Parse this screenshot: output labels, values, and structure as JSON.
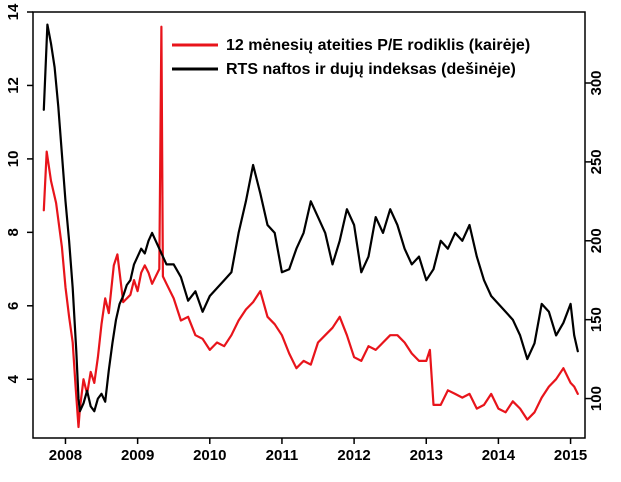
{
  "chart_data": {
    "type": "line",
    "title": "",
    "xlabel": "",
    "ylabel_left": "",
    "ylabel_right": "",
    "xlim": [
      2007.55,
      2015.2
    ],
    "ylim_left": [
      2.4,
      14
    ],
    "ylim_right": [
      75,
      345
    ],
    "x_ticks": [
      {
        "value": 2008,
        "label": "2008"
      },
      {
        "value": 2009,
        "label": "2009"
      },
      {
        "value": 2010,
        "label": "2010"
      },
      {
        "value": 2011,
        "label": "2011"
      },
      {
        "value": 2012,
        "label": "2012"
      },
      {
        "value": 2013,
        "label": "2013"
      },
      {
        "value": 2014,
        "label": "2014"
      },
      {
        "value": 2015,
        "label": "2015"
      }
    ],
    "y_left_ticks": [
      {
        "value": 4,
        "label": "4"
      },
      {
        "value": 6,
        "label": "6"
      },
      {
        "value": 8,
        "label": "8"
      },
      {
        "value": 10,
        "label": "10"
      },
      {
        "value": 12,
        "label": "12"
      },
      {
        "value": 14,
        "label": "14"
      }
    ],
    "y_right_ticks": [
      {
        "value": 100,
        "label": "100"
      },
      {
        "value": 150,
        "label": "150"
      },
      {
        "value": 200,
        "label": "200"
      },
      {
        "value": 250,
        "label": "250"
      },
      {
        "value": 300,
        "label": "300"
      }
    ],
    "grid": false,
    "legend_position": "top-right",
    "series": [
      {
        "name": "12 mėnesių ateities P/E rodiklis (kairėje)",
        "axis": "left",
        "color": "#e8141b",
        "x": [
          2007.7,
          2007.74,
          2007.8,
          2007.87,
          2007.95,
          2008.0,
          2008.05,
          2008.1,
          2008.14,
          2008.18,
          2008.2,
          2008.25,
          2008.3,
          2008.35,
          2008.4,
          2008.45,
          2008.5,
          2008.55,
          2008.6,
          2008.67,
          2008.72,
          2008.8,
          2008.9,
          2008.95,
          2009.0,
          2009.05,
          2009.1,
          2009.15,
          2009.2,
          2009.3,
          2009.33,
          2009.35,
          2009.4,
          2009.5,
          2009.6,
          2009.7,
          2009.8,
          2009.9,
          2010.0,
          2010.1,
          2010.2,
          2010.3,
          2010.4,
          2010.5,
          2010.6,
          2010.7,
          2010.8,
          2010.9,
          2011.0,
          2011.1,
          2011.2,
          2011.3,
          2011.4,
          2011.5,
          2011.6,
          2011.7,
          2011.8,
          2011.9,
          2012.0,
          2012.1,
          2012.2,
          2012.3,
          2012.4,
          2012.5,
          2012.6,
          2012.7,
          2012.8,
          2012.9,
          2013.0,
          2013.05,
          2013.1,
          2013.2,
          2013.3,
          2013.4,
          2013.5,
          2013.6,
          2013.7,
          2013.8,
          2013.9,
          2014.0,
          2014.1,
          2014.2,
          2014.3,
          2014.4,
          2014.5,
          2014.6,
          2014.7,
          2014.8,
          2014.9,
          2015.0,
          2015.05,
          2015.1
        ],
        "values": [
          8.6,
          10.2,
          9.4,
          8.8,
          7.6,
          6.5,
          5.7,
          5.0,
          3.8,
          2.7,
          3.2,
          4.0,
          3.6,
          4.2,
          3.9,
          4.6,
          5.5,
          6.2,
          5.8,
          7.1,
          7.4,
          6.1,
          6.3,
          6.7,
          6.4,
          6.9,
          7.1,
          6.9,
          6.6,
          7.0,
          13.6,
          6.8,
          6.6,
          6.2,
          5.6,
          5.7,
          5.2,
          5.1,
          4.8,
          5.0,
          4.9,
          5.2,
          5.6,
          5.9,
          6.1,
          6.4,
          5.7,
          5.5,
          5.2,
          4.7,
          4.3,
          4.5,
          4.4,
          5.0,
          5.2,
          5.4,
          5.7,
          5.2,
          4.6,
          4.5,
          4.9,
          4.8,
          5.0,
          5.2,
          5.2,
          5.0,
          4.7,
          4.5,
          4.5,
          4.8,
          3.3,
          3.3,
          3.7,
          3.6,
          3.5,
          3.6,
          3.2,
          3.3,
          3.6,
          3.2,
          3.1,
          3.4,
          3.2,
          2.9,
          3.1,
          3.5,
          3.8,
          4.0,
          4.3,
          3.9,
          3.8,
          3.6
        ]
      },
      {
        "name": "RTS naftos ir dujų indeksas (dešinėje)",
        "axis": "right",
        "color": "#000000",
        "x": [
          2007.7,
          2007.75,
          2007.8,
          2007.85,
          2007.9,
          2007.95,
          2008.0,
          2008.05,
          2008.1,
          2008.15,
          2008.18,
          2008.2,
          2008.25,
          2008.3,
          2008.35,
          2008.4,
          2008.45,
          2008.5,
          2008.55,
          2008.6,
          2008.65,
          2008.7,
          2008.75,
          2008.8,
          2008.85,
          2008.9,
          2008.95,
          2009.0,
          2009.05,
          2009.1,
          2009.15,
          2009.2,
          2009.3,
          2009.4,
          2009.5,
          2009.6,
          2009.7,
          2009.8,
          2009.9,
          2010.0,
          2010.1,
          2010.2,
          2010.3,
          2010.4,
          2010.5,
          2010.6,
          2010.7,
          2010.8,
          2010.9,
          2011.0,
          2011.1,
          2011.2,
          2011.3,
          2011.4,
          2011.5,
          2011.6,
          2011.7,
          2011.8,
          2011.9,
          2012.0,
          2012.1,
          2012.2,
          2012.3,
          2012.4,
          2012.5,
          2012.6,
          2012.7,
          2012.8,
          2012.9,
          2013.0,
          2013.1,
          2013.2,
          2013.3,
          2013.4,
          2013.5,
          2013.6,
          2013.7,
          2013.8,
          2013.9,
          2014.0,
          2014.1,
          2014.2,
          2014.3,
          2014.4,
          2014.5,
          2014.6,
          2014.7,
          2014.8,
          2014.9,
          2015.0,
          2015.05,
          2015.1
        ],
        "values": [
          283,
          337,
          325,
          310,
          285,
          255,
          225,
          200,
          170,
          130,
          100,
          92,
          97,
          105,
          95,
          92,
          100,
          103,
          98,
          118,
          135,
          150,
          160,
          165,
          172,
          175,
          185,
          190,
          195,
          192,
          200,
          205,
          195,
          185,
          185,
          177,
          162,
          168,
          155,
          165,
          170,
          175,
          180,
          205,
          225,
          248,
          230,
          210,
          205,
          180,
          182,
          195,
          205,
          225,
          215,
          205,
          185,
          200,
          220,
          210,
          180,
          190,
          215,
          205,
          220,
          210,
          195,
          185,
          190,
          175,
          182,
          200,
          195,
          205,
          200,
          210,
          190,
          175,
          165,
          160,
          155,
          150,
          140,
          125,
          135,
          160,
          155,
          140,
          148,
          160,
          140,
          130
        ]
      }
    ]
  }
}
